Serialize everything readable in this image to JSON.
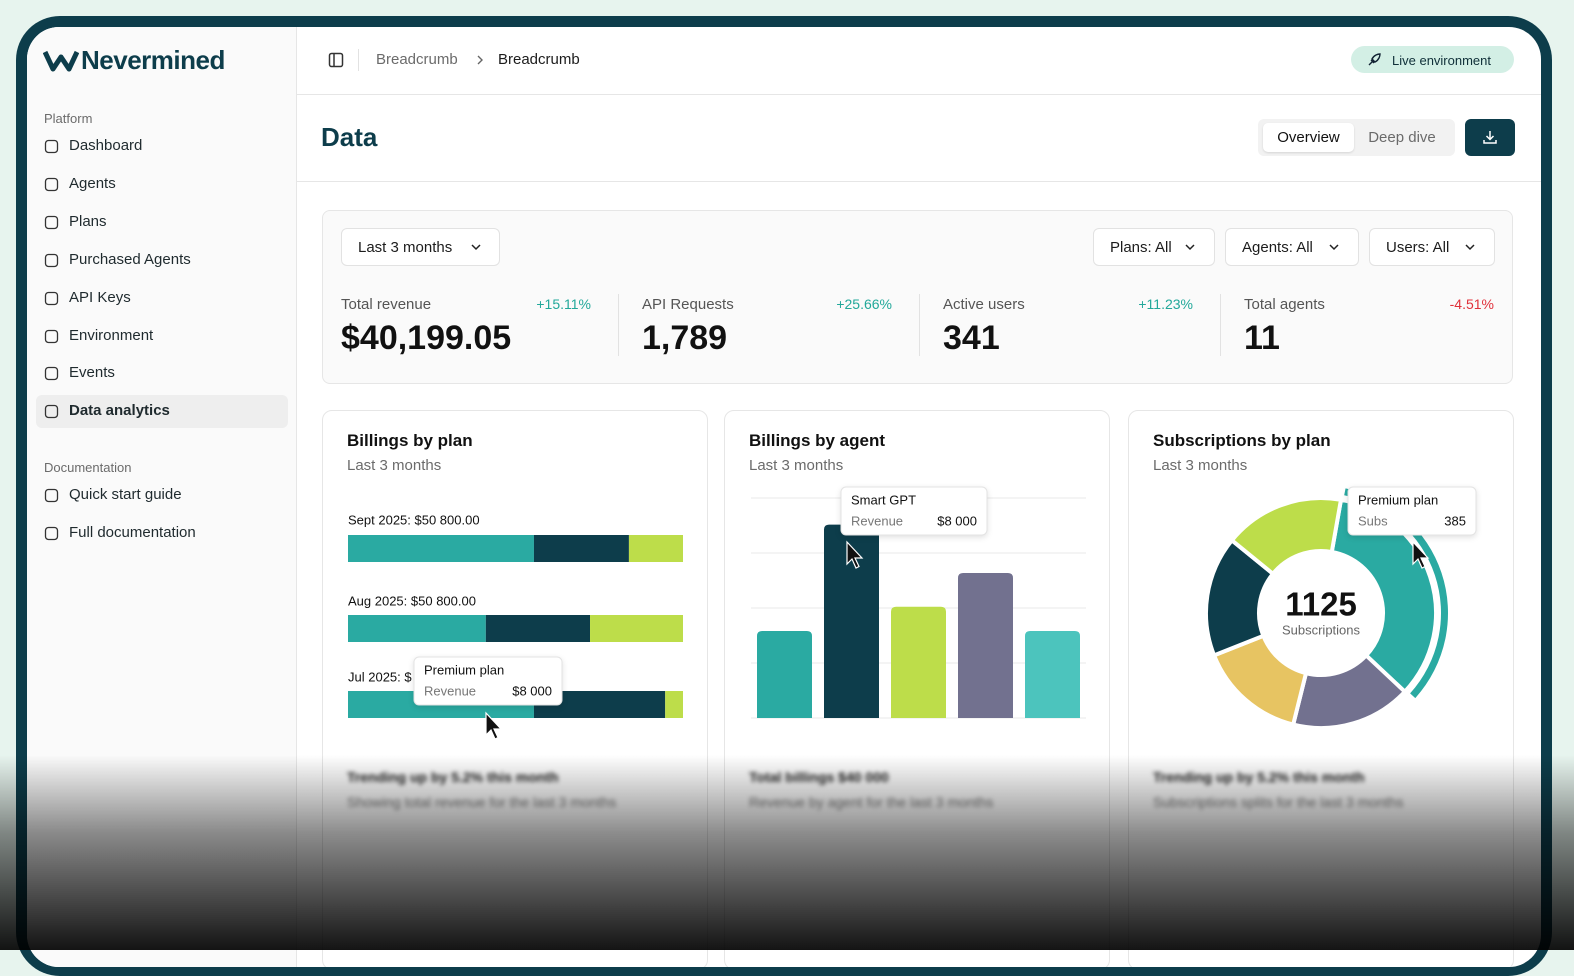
{
  "sidebar": {
    "brand": "Nevermined",
    "sections": [
      {
        "label": "Platform",
        "items": [
          "Dashboard",
          "Agents",
          "Plans",
          "Purchased Agents",
          "API Keys",
          "Environment",
          "Events",
          "Data analytics"
        ]
      },
      {
        "label": "Documentation",
        "items": [
          "Quick start guide",
          "Full documentation"
        ]
      }
    ],
    "active_item": "Data analytics"
  },
  "header": {
    "breadcrumbs": [
      "Breadcrumb",
      "Breadcrumb"
    ],
    "environment": "Live environment"
  },
  "page": {
    "title": "Data",
    "tabs": [
      "Overview",
      "Deep dive"
    ],
    "active_tab": 0
  },
  "filters": {
    "period": "Last 3 months",
    "selects": [
      "Plans: All",
      "Agents: All",
      "Users: All"
    ]
  },
  "kpis": [
    {
      "label": "Total revenue",
      "value": "$40,199.05",
      "change": "+15.11%",
      "trend": "up"
    },
    {
      "label": "API Requests",
      "value": "1,789",
      "change": "+25.66%",
      "trend": "up"
    },
    {
      "label": "Active users",
      "value": "341",
      "change": "+11.23%",
      "trend": "up"
    },
    {
      "label": "Total agents",
      "value": "11",
      "change": "-4.51%",
      "trend": "down"
    }
  ],
  "cards": [
    {
      "title": "Billings by plan",
      "subtitle": "Last 3 months",
      "chart": {
        "type": "stacked-bar",
        "categories": [
          "Sept 2025: $50 800.00",
          "Aug 2025: $50 800.00",
          "Jul 2025: $"
        ],
        "xlim": [
          0,
          50800
        ],
        "series": [
          {
            "color": "#2aaaa2",
            "values": [
              28200,
              20900,
              28200
            ]
          },
          {
            "color": "#0d3d4b",
            "values": [
              14400,
              15800,
              19900
            ]
          },
          {
            "color": "#bddd4a",
            "values": [
              8200,
              14100,
              2700
            ]
          }
        ],
        "tooltip": {
          "title": "Premium plan",
          "label": "Revenue",
          "value": "$8 000"
        }
      },
      "footer": {
        "headline": "Trending up by 5.2% this month",
        "note": "Showing total revenue for the last 3 months"
      }
    },
    {
      "title": "Billings by agent",
      "subtitle": "Last 3 months",
      "chart": {
        "type": "bar",
        "categories": [
          null,
          "Smart GPT",
          null,
          null,
          null
        ],
        "values": [
          3600,
          8000,
          4600,
          6000,
          3600
        ],
        "colors": [
          "#2aaaa2",
          "#0d3d4b",
          "#bddd4a",
          "#72718f",
          "#4cc4bd"
        ],
        "ylim": [
          0,
          9100
        ],
        "yticks": [
          0,
          2275,
          4550,
          6825,
          9100
        ],
        "grid": true,
        "tooltip": {
          "title": "Smart GPT",
          "label": "Revenue",
          "value": "$8 000"
        }
      },
      "footer": {
        "headline": "Total billings $40 000",
        "note": "Revenue by agent for the last 3 months"
      }
    },
    {
      "title": "Subscriptions by plan",
      "subtitle": "Last 3 months",
      "chart": {
        "type": "donut",
        "values": [
          385,
          190,
          170,
          190,
          190
        ],
        "colors": [
          "#2aaaa2",
          "#72718f",
          "#e7c462",
          "#0d3d4b",
          "#bddd4a"
        ],
        "center_value": 1125,
        "center_label": "Subscriptions",
        "highlight": 0,
        "tooltip": {
          "title": "Premium plan",
          "label": "Subs",
          "value": 385
        }
      },
      "footer": {
        "headline": "Trending up by 5.2% this month",
        "note": "Subscriptions splits for the last 3 months"
      }
    }
  ]
}
